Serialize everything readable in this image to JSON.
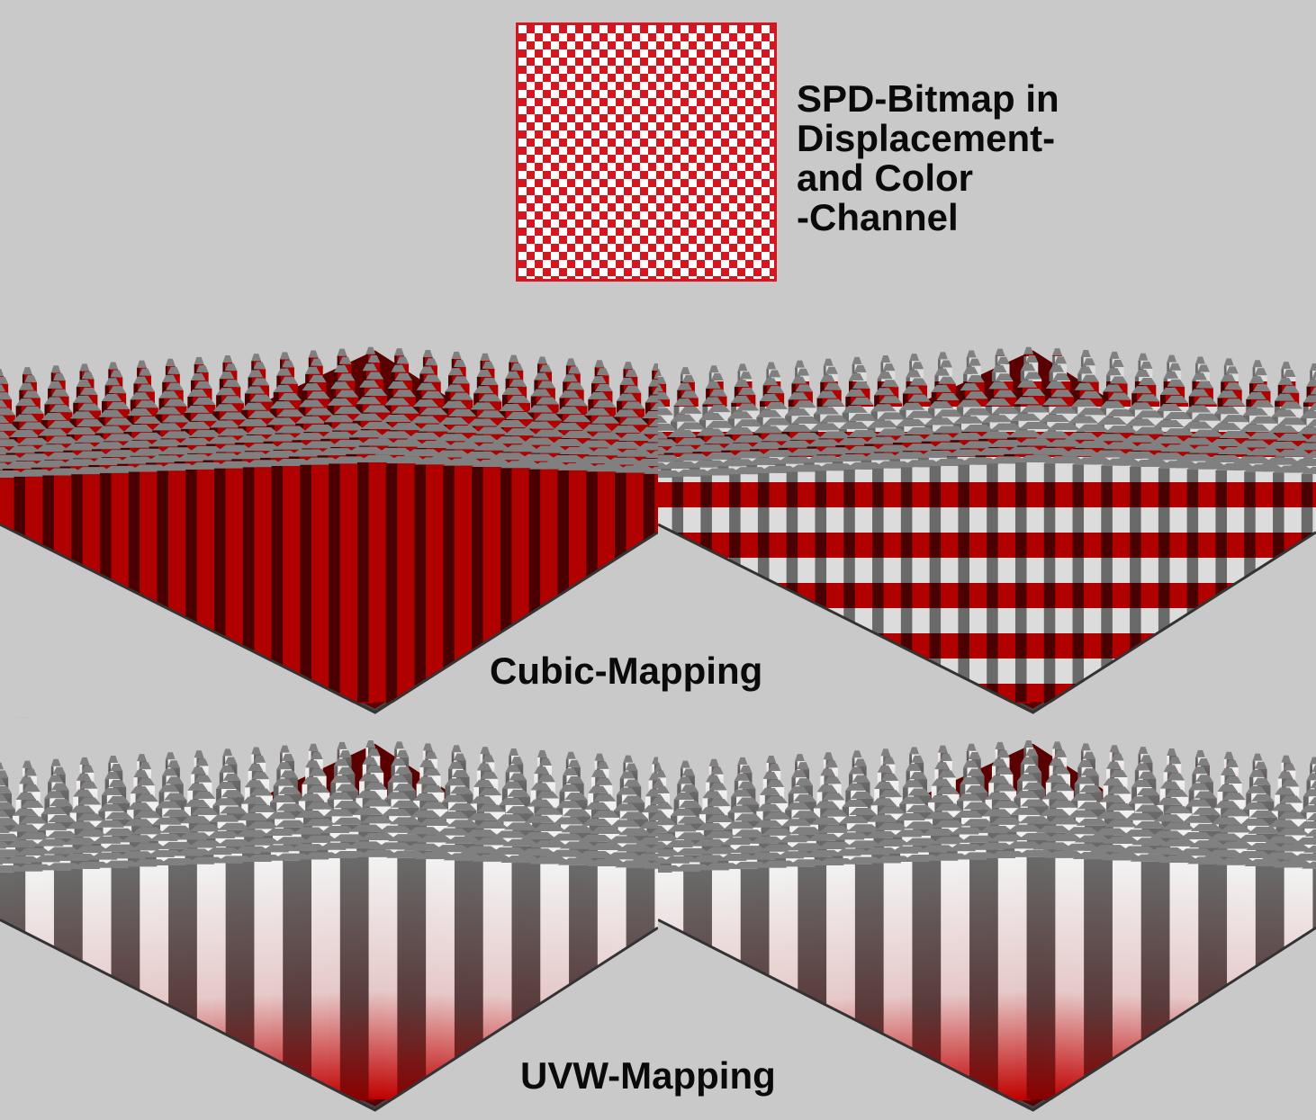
{
  "texture_caption": [
    "SPD-Bitmap in",
    "Displacement-",
    "and Color",
    "-Channel"
  ],
  "rows": [
    {
      "label": "Cubic-Mapping",
      "panels": [
        {
          "name": "cubic-mapping-render-left",
          "style": "solid-red"
        },
        {
          "name": "cubic-mapping-render-right",
          "style": "checker-stripes"
        }
      ]
    },
    {
      "label": "UVW-Mapping",
      "panels": [
        {
          "name": "uvw-mapping-render-left",
          "style": "gradient-white-red"
        },
        {
          "name": "uvw-mapping-render-right",
          "style": "gradient-grey-red"
        }
      ]
    }
  ],
  "colors": {
    "background": "#c9c9c9",
    "texture_red": "#d6161e",
    "texture_white": "#ffffff",
    "pillar_red": "#b00000",
    "pillar_dark_red": "#4a0000",
    "pillar_top_grey": "#808080",
    "pillar_white": "#f0f0f0",
    "pillar_grey": "#5a5a5a"
  }
}
